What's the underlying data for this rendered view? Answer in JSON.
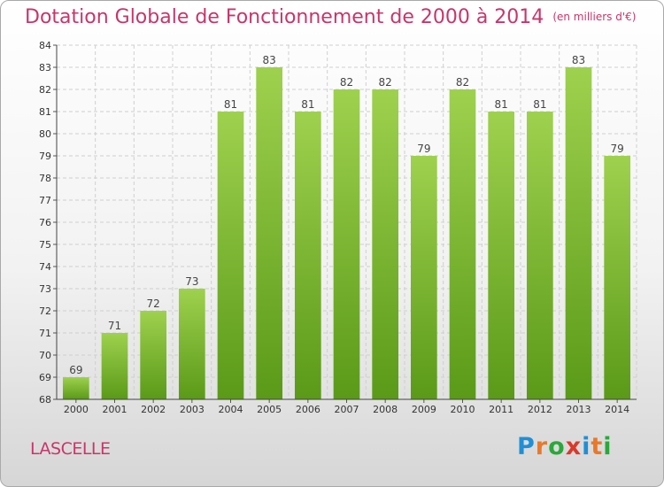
{
  "title": {
    "main": "Dotation Globale de Fonctionnement de 2000 à 2014",
    "unit": "(en milliers d'€)"
  },
  "commune": "LASCELLE",
  "logo": {
    "letters": [
      "P",
      "r",
      "o",
      "x",
      "i",
      "t",
      "i"
    ],
    "colors": [
      "#1f8fd6",
      "#e8792a",
      "#2aa83b",
      "#d93a2b",
      "#1f8fd6",
      "#e8792a",
      "#2aa83b"
    ]
  },
  "chart_data": {
    "type": "bar",
    "categories": [
      "2000",
      "2001",
      "2002",
      "2003",
      "2004",
      "2005",
      "2006",
      "2007",
      "2008",
      "2009",
      "2010",
      "2011",
      "2012",
      "2013",
      "2014"
    ],
    "values": [
      69,
      71,
      72,
      73,
      81,
      83,
      81,
      82,
      82,
      79,
      82,
      81,
      81,
      83,
      79
    ],
    "ylim": [
      68,
      84
    ],
    "yticks": [
      68,
      69,
      70,
      71,
      72,
      73,
      74,
      75,
      76,
      77,
      78,
      79,
      80,
      81,
      82,
      83,
      84
    ],
    "grid": true,
    "bar_color_top": "#9ed14e",
    "bar_color_bottom": "#5a9a18"
  }
}
